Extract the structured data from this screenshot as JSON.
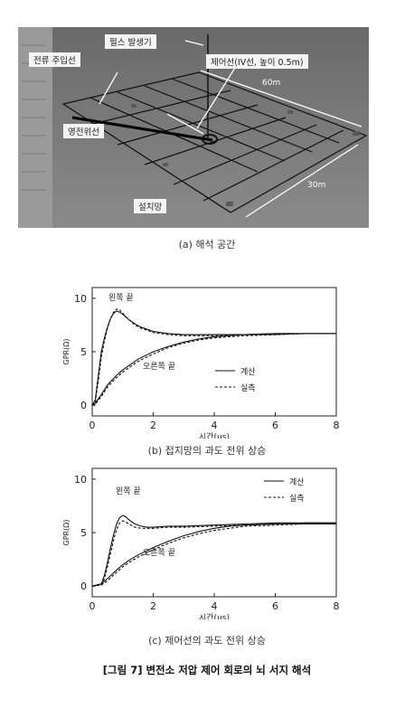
{
  "figure_a": {
    "callouts": {
      "pulse": "펄스 발생기",
      "injection": "전류 주입선",
      "control": "제어선(IV선, 높이 0.5m)",
      "zero": "영전위선",
      "grid": "설치망"
    },
    "dims": {
      "long": "60m",
      "short": "30m"
    },
    "caption": "(a) 해석 공간"
  },
  "figure_b": {
    "caption": "(b) 접지망의 과도 전위 상승"
  },
  "figure_c": {
    "caption": "(c) 제어선의 과도 전위 상승"
  },
  "figure_title": "[그림 7] 변전소 저압 제어 회로의 뇌 서지 해석",
  "chart_data": [
    {
      "type": "line",
      "xlabel": "시간(μs)",
      "ylabel": "GPR(Ω)",
      "xlim": [
        0,
        8
      ],
      "ylim": [
        -1,
        11
      ],
      "xticks": [
        0,
        2,
        4,
        6,
        8
      ],
      "yticks": [
        0,
        5,
        10
      ],
      "grid": false,
      "legend": "right",
      "legend_entries": [
        "계산",
        "실측"
      ],
      "annotations": [
        "왼쪽 끝",
        "오른쪽 끝"
      ],
      "series": [
        {
          "name": "계산",
          "label": "왼쪽 끝",
          "style": "solid",
          "x": [
            0,
            0.1,
            0.2,
            0.3,
            0.4,
            0.5,
            0.6,
            0.7,
            0.8,
            0.9,
            1.0,
            1.2,
            1.4,
            1.6,
            1.8,
            2.0,
            2.5,
            3,
            4,
            5,
            6,
            7,
            8
          ],
          "y": [
            0,
            0.5,
            2.8,
            5.0,
            6.3,
            7.3,
            8.1,
            8.6,
            8.8,
            8.7,
            8.5,
            8.0,
            7.6,
            7.3,
            7.1,
            6.9,
            6.7,
            6.6,
            6.6,
            6.6,
            6.7,
            6.7,
            6.7
          ]
        },
        {
          "name": "실측",
          "label": "왼쪽 끝",
          "style": "dashed",
          "x": [
            0,
            0.1,
            0.2,
            0.3,
            0.4,
            0.5,
            0.6,
            0.7,
            0.8,
            0.9,
            1.0,
            1.2,
            1.4,
            1.6,
            1.8,
            2.0,
            2.5,
            3,
            4,
            5,
            6,
            7,
            8
          ],
          "y": [
            0,
            0.3,
            2.3,
            4.5,
            6.0,
            7.2,
            8.1,
            8.7,
            9.0,
            8.9,
            8.6,
            8.0,
            7.5,
            7.2,
            7.0,
            6.8,
            6.6,
            6.5,
            6.5,
            6.6,
            6.6,
            6.7,
            6.7
          ]
        },
        {
          "name": "계산",
          "label": "오른쪽 끝",
          "style": "solid",
          "x": [
            0,
            0.1,
            0.3,
            0.5,
            0.8,
            1.0,
            1.5,
            2.0,
            2.5,
            3.0,
            3.5,
            4.0,
            5.0,
            6.0,
            7.0,
            8.0
          ],
          "y": [
            0,
            0.2,
            1.0,
            1.9,
            2.8,
            3.3,
            4.3,
            5.0,
            5.5,
            5.9,
            6.2,
            6.4,
            6.6,
            6.7,
            6.7,
            6.7
          ]
        },
        {
          "name": "실측",
          "label": "오른쪽 끝",
          "style": "dashed",
          "x": [
            0,
            0.1,
            0.3,
            0.5,
            0.8,
            1.0,
            1.5,
            2.0,
            2.5,
            3.0,
            3.5,
            4.0,
            5.0,
            6.0,
            7.0,
            8.0
          ],
          "y": [
            0,
            0.1,
            0.8,
            1.7,
            2.6,
            3.1,
            4.1,
            4.8,
            5.4,
            5.8,
            6.1,
            6.3,
            6.5,
            6.6,
            6.7,
            6.7
          ]
        }
      ]
    },
    {
      "type": "line",
      "xlabel": "시간(μs)",
      "ylabel": "GPR(Ω)",
      "xlim": [
        0,
        8
      ],
      "ylim": [
        -1,
        11
      ],
      "xticks": [
        0,
        2,
        4,
        6,
        8
      ],
      "yticks": [
        0,
        5,
        10
      ],
      "grid": false,
      "legend": "top-right",
      "legend_entries": [
        "계산",
        "실측"
      ],
      "annotations": [
        "왼쪽 끝",
        "오른쪽 끝"
      ],
      "series": [
        {
          "name": "계산",
          "label": "왼쪽 끝",
          "style": "solid",
          "x": [
            0,
            0.3,
            0.4,
            0.5,
            0.6,
            0.7,
            0.8,
            0.9,
            1.0,
            1.1,
            1.2,
            1.4,
            1.6,
            1.8,
            2.0,
            2.5,
            3,
            4,
            5,
            6,
            7,
            8
          ],
          "y": [
            0,
            0.2,
            1.0,
            2.2,
            3.6,
            4.8,
            5.8,
            6.4,
            6.6,
            6.5,
            6.2,
            5.8,
            5.6,
            5.5,
            5.5,
            5.6,
            5.6,
            5.7,
            5.8,
            5.9,
            5.9,
            5.9
          ]
        },
        {
          "name": "실측",
          "label": "왼쪽 끝",
          "style": "dashed",
          "x": [
            0,
            0.3,
            0.4,
            0.5,
            0.6,
            0.7,
            0.8,
            0.9,
            1.0,
            1.1,
            1.2,
            1.4,
            1.6,
            1.8,
            2.0,
            2.5,
            3,
            4,
            5,
            6,
            7,
            8
          ],
          "y": [
            0,
            0.1,
            0.7,
            1.8,
            3.1,
            4.3,
            5.3,
            5.9,
            6.1,
            6.0,
            5.8,
            5.5,
            5.4,
            5.4,
            5.4,
            5.5,
            5.5,
            5.6,
            5.7,
            5.8,
            5.8,
            5.8
          ]
        },
        {
          "name": "계산",
          "label": "오른쪽 끝",
          "style": "solid",
          "x": [
            0,
            0.3,
            0.5,
            0.8,
            1.0,
            1.2,
            1.5,
            2.0,
            2.5,
            3.0,
            3.5,
            4.0,
            4.5,
            5.0,
            6.0,
            7.0,
            8.0
          ],
          "y": [
            0,
            0.2,
            0.7,
            1.5,
            2.0,
            2.4,
            2.9,
            3.6,
            4.2,
            4.7,
            5.1,
            5.4,
            5.6,
            5.7,
            5.8,
            5.9,
            5.9
          ]
        },
        {
          "name": "실측",
          "label": "오른쪽 끝",
          "style": "dashed",
          "x": [
            0,
            0.3,
            0.5,
            0.8,
            1.0,
            1.2,
            1.5,
            2.0,
            2.5,
            3.0,
            3.5,
            4.0,
            4.5,
            5.0,
            6.0,
            7.0,
            8.0
          ],
          "y": [
            0,
            0.1,
            0.5,
            1.3,
            1.8,
            2.2,
            2.7,
            3.4,
            4.0,
            4.5,
            4.9,
            5.2,
            5.4,
            5.6,
            5.7,
            5.8,
            5.8
          ]
        }
      ]
    }
  ]
}
